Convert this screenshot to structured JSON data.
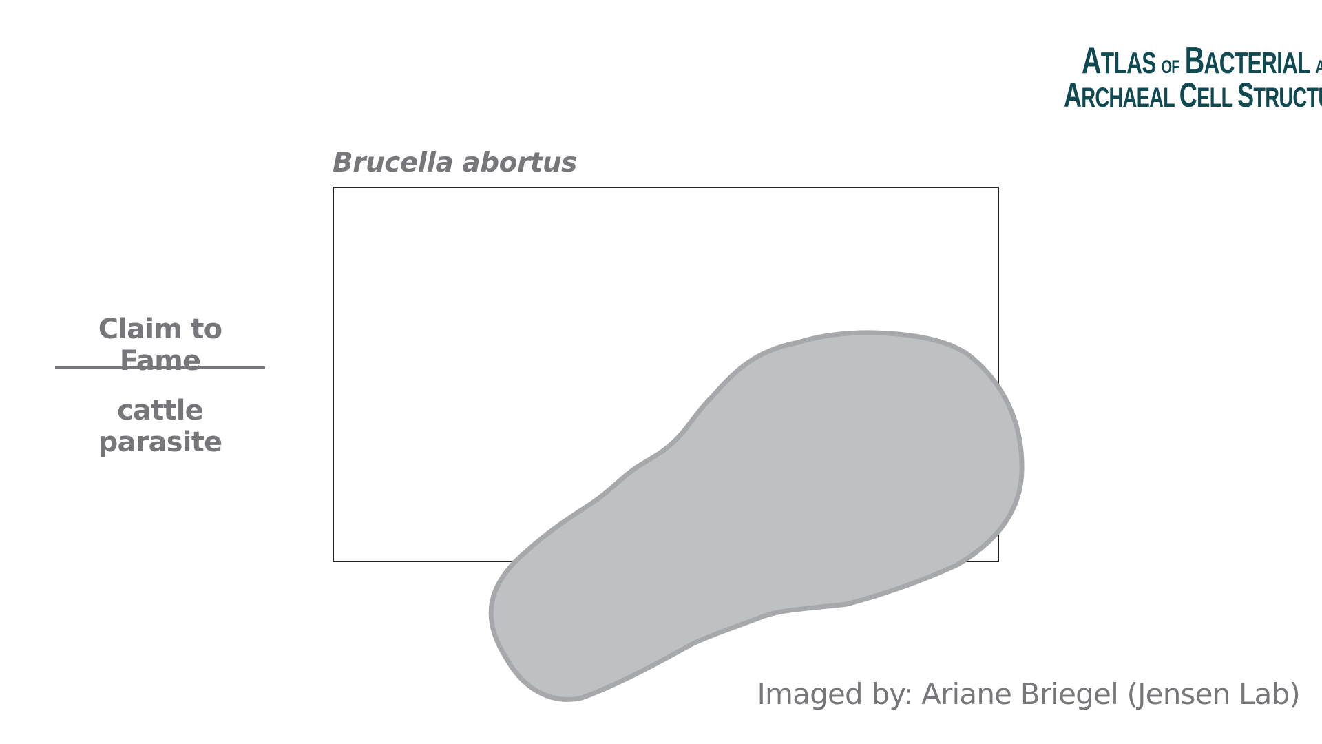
{
  "logo": {
    "line1_big": "A",
    "line1_rest": "TLAS",
    "line1_of": "OF",
    "line1_big2": "B",
    "line1_rest2": "ACTERIAL",
    "line1_and": "AND",
    "line2_big": "A",
    "line2_rest": "RCHAEAL",
    "line2_big2": "C",
    "line2_rest2": "ELL",
    "line2_big3": "S",
    "line2_rest3": "TRUCTURE",
    "color": "#0f4a52"
  },
  "figure": {
    "title": "Brucella abortus",
    "cell_fill": "#bfc0c3",
    "cell_outline": "#a7a8ab"
  },
  "claim": {
    "heading": "Claim to Fame",
    "value": "cattle parasite"
  },
  "credit": "Imaged by: Ariane Briegel (Jensen Lab)",
  "colors": {
    "text_gray": "#77777b",
    "frame": "#222222"
  }
}
